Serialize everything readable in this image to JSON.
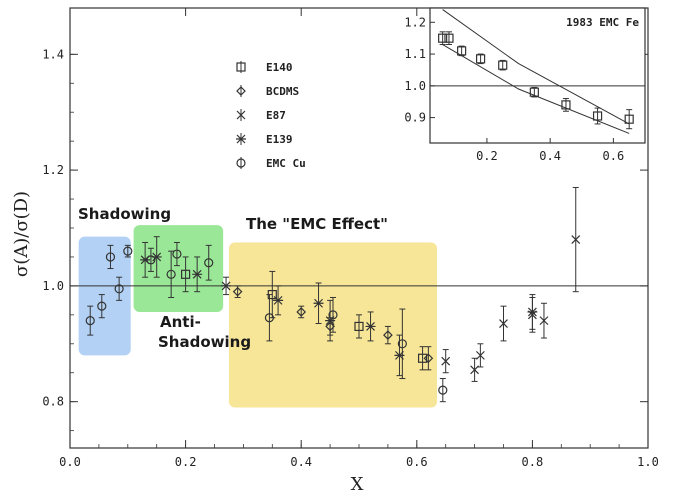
{
  "chart_data": {
    "type": "scatter",
    "title": "",
    "xlabel": "X",
    "ylabel": "σ(A)/σ(D)",
    "xlim": [
      0.0,
      1.0
    ],
    "ylim": [
      0.72,
      1.48
    ],
    "x_ticks": [
      "0.0",
      "0.2",
      "0.4",
      "0.6",
      "0.8",
      "1.0"
    ],
    "y_ticks": [
      "0.8",
      "1.0",
      "1.2",
      "1.4"
    ],
    "grid": false,
    "reference_line_y": 1.0,
    "legend_position": "top-center",
    "legend": [
      {
        "label": "E140",
        "marker": "square"
      },
      {
        "label": "BCDMS",
        "marker": "diamond"
      },
      {
        "label": "E87",
        "marker": "x"
      },
      {
        "label": "E139",
        "marker": "star"
      },
      {
        "label": "EMC Cu",
        "marker": "circle"
      }
    ],
    "series": [
      {
        "name": "E140",
        "marker": "square",
        "points": [
          {
            "x": 0.2,
            "y": 1.02,
            "err": 0.03
          },
          {
            "x": 0.35,
            "y": 0.985,
            "err": 0.04
          },
          {
            "x": 0.5,
            "y": 0.93,
            "err": 0.02
          },
          {
            "x": 0.61,
            "y": 0.875,
            "err": 0.02
          }
        ]
      },
      {
        "name": "BCDMS",
        "marker": "diamond",
        "points": [
          {
            "x": 0.29,
            "y": 0.99,
            "err": 0.01
          },
          {
            "x": 0.4,
            "y": 0.955,
            "err": 0.01
          },
          {
            "x": 0.45,
            "y": 0.93,
            "err": 0.015
          },
          {
            "x": 0.55,
            "y": 0.915,
            "err": 0.015
          },
          {
            "x": 0.62,
            "y": 0.875,
            "err": 0.02
          }
        ]
      },
      {
        "name": "E87",
        "marker": "x",
        "points": [
          {
            "x": 0.65,
            "y": 0.87,
            "err": 0.02
          },
          {
            "x": 0.7,
            "y": 0.855,
            "err": 0.02
          },
          {
            "x": 0.71,
            "y": 0.88,
            "err": 0.02
          },
          {
            "x": 0.75,
            "y": 0.935,
            "err": 0.03
          },
          {
            "x": 0.8,
            "y": 0.95,
            "err": 0.03
          },
          {
            "x": 0.82,
            "y": 0.94,
            "err": 0.03
          },
          {
            "x": 0.875,
            "y": 1.08,
            "err": 0.09
          }
        ]
      },
      {
        "name": "E139",
        "marker": "star",
        "points": [
          {
            "x": 0.13,
            "y": 1.045,
            "err": 0.03
          },
          {
            "x": 0.15,
            "y": 1.05,
            "err": 0.035
          },
          {
            "x": 0.22,
            "y": 1.02,
            "err": 0.03
          },
          {
            "x": 0.27,
            "y": 1.0,
            "err": 0.015
          },
          {
            "x": 0.36,
            "y": 0.975,
            "err": 0.025
          },
          {
            "x": 0.43,
            "y": 0.97,
            "err": 0.035
          },
          {
            "x": 0.45,
            "y": 0.94,
            "err": 0.035
          },
          {
            "x": 0.52,
            "y": 0.93,
            "err": 0.025
          },
          {
            "x": 0.57,
            "y": 0.88,
            "err": 0.035
          },
          {
            "x": 0.8,
            "y": 0.955,
            "err": 0.03
          }
        ]
      },
      {
        "name": "EMC Cu",
        "marker": "circle",
        "points": [
          {
            "x": 0.035,
            "y": 0.94,
            "err": 0.025
          },
          {
            "x": 0.055,
            "y": 0.965,
            "err": 0.02
          },
          {
            "x": 0.07,
            "y": 1.05,
            "err": 0.02
          },
          {
            "x": 0.085,
            "y": 0.995,
            "err": 0.02
          },
          {
            "x": 0.1,
            "y": 1.06,
            "err": 0.01
          },
          {
            "x": 0.14,
            "y": 1.045,
            "err": 0.02
          },
          {
            "x": 0.175,
            "y": 1.02,
            "err": 0.04
          },
          {
            "x": 0.185,
            "y": 1.055,
            "err": 0.02
          },
          {
            "x": 0.24,
            "y": 1.04,
            "err": 0.03
          },
          {
            "x": 0.345,
            "y": 0.945,
            "err": 0.04
          },
          {
            "x": 0.455,
            "y": 0.95,
            "err": 0.03
          },
          {
            "x": 0.575,
            "y": 0.9,
            "err": 0.06
          },
          {
            "x": 0.645,
            "y": 0.82,
            "err": 0.02
          }
        ]
      }
    ],
    "regions": [
      {
        "label": "Shadowing",
        "x": [
          0.015,
          0.105
        ],
        "y": [
          0.88,
          1.085
        ],
        "color": "#9ec4f2"
      },
      {
        "label": "Anti-\nShadowing",
        "x": [
          0.11,
          0.265
        ],
        "y": [
          0.955,
          1.105
        ],
        "color": "#7de27a"
      },
      {
        "label": "The \"EMC Effect\"",
        "x": [
          0.275,
          0.635
        ],
        "y": [
          0.79,
          1.075
        ],
        "color": "#f5df7a"
      }
    ],
    "inset": {
      "title": "1983 EMC Fe",
      "xlim": [
        0.02,
        0.7
      ],
      "ylim": [
        0.82,
        1.245
      ],
      "x_ticks": [
        "0.2",
        "0.4",
        "0.6"
      ],
      "y_ticks": [
        "0.9",
        "1.0",
        "1.1",
        "1.2"
      ],
      "reference_line_y": 1.0,
      "points": [
        {
          "x": 0.06,
          "y": 1.15,
          "err": 0.02
        },
        {
          "x": 0.08,
          "y": 1.15,
          "err": 0.02
        },
        {
          "x": 0.12,
          "y": 1.11,
          "err": 0.015
        },
        {
          "x": 0.18,
          "y": 1.085,
          "err": 0.015
        },
        {
          "x": 0.25,
          "y": 1.065,
          "err": 0.015
        },
        {
          "x": 0.35,
          "y": 0.98,
          "err": 0.015
        },
        {
          "x": 0.45,
          "y": 0.94,
          "err": 0.02
        },
        {
          "x": 0.55,
          "y": 0.905,
          "err": 0.025
        },
        {
          "x": 0.65,
          "y": 0.895,
          "err": 0.03
        }
      ],
      "band_upper": [
        {
          "x": 0.06,
          "y": 1.24
        },
        {
          "x": 0.3,
          "y": 1.07
        },
        {
          "x": 0.65,
          "y": 0.88
        }
      ],
      "band_lower": [
        {
          "x": 0.06,
          "y": 1.13
        },
        {
          "x": 0.3,
          "y": 0.99
        },
        {
          "x": 0.65,
          "y": 0.85
        }
      ]
    }
  }
}
